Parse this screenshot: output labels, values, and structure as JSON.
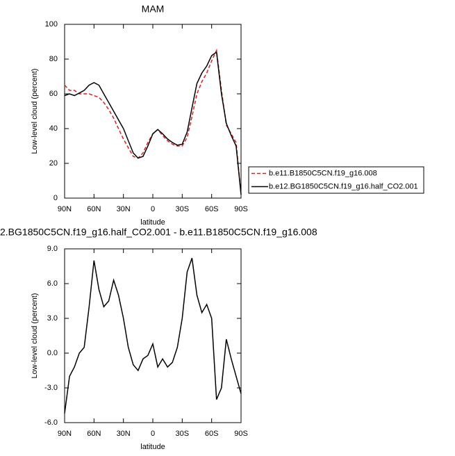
{
  "chart_data": [
    {
      "type": "line",
      "title": "MAM",
      "xlabel": "latitude",
      "ylabel": "Low-level cloud (percent)",
      "x": [
        90,
        85,
        80,
        75,
        70,
        65,
        60,
        55,
        50,
        45,
        40,
        35,
        30,
        25,
        20,
        15,
        10,
        5,
        0,
        -5,
        -10,
        -15,
        -20,
        -25,
        -30,
        -35,
        -40,
        -45,
        -50,
        -55,
        -60,
        -65,
        -70,
        -75,
        -80,
        -85,
        -90
      ],
      "xlim": [
        90,
        -90
      ],
      "xticks": [
        {
          "value": 90,
          "label": "90N"
        },
        {
          "value": 60,
          "label": "60N"
        },
        {
          "value": 30,
          "label": "30N"
        },
        0,
        {
          "value": -30,
          "label": "30S"
        },
        {
          "value": -60,
          "label": "60S"
        },
        {
          "value": -90,
          "label": "90S"
        }
      ],
      "ylim": [
        0,
        100
      ],
      "yticks": [
        0,
        20,
        40,
        60,
        80,
        100
      ],
      "legend": "right",
      "series": [
        {
          "name": "b.e11.B1850C5CN.f19_g16.008",
          "color": "#e41a1c",
          "line_style": "dashed",
          "values": [
            65,
            62,
            62,
            60,
            60,
            60,
            59,
            58,
            55,
            51,
            46,
            40,
            34,
            29,
            24,
            23,
            26,
            32,
            37,
            39.5,
            36,
            33,
            31,
            30,
            30,
            35,
            47,
            60,
            67,
            72,
            79,
            85,
            62,
            42,
            37,
            32,
            2
          ]
        },
        {
          "name": "b.e12.BG1850C5CN.f19_g16.half_CO2.001",
          "color": "#000000",
          "line_style": "solid",
          "values": [
            59,
            60,
            59,
            60.5,
            62,
            65,
            66.5,
            65,
            60,
            55,
            50,
            45,
            40,
            33,
            26,
            23,
            24,
            30,
            37,
            39.5,
            37,
            34,
            32,
            30.5,
            31,
            38,
            52,
            66,
            72,
            76,
            82,
            84,
            60,
            43,
            36,
            30,
            2
          ]
        }
      ]
    },
    {
      "type": "line",
      "title": "2.BG1850C5CN.f19_g16.half_CO2.001 - b.e11.B1850C5CN.f19_g16.008",
      "xlabel": "latitude",
      "ylabel": "Low-level cloud (percent)",
      "x": [
        90,
        85,
        80,
        75,
        70,
        65,
        60,
        55,
        50,
        45,
        40,
        35,
        30,
        25,
        20,
        15,
        10,
        5,
        0,
        -5,
        -10,
        -15,
        -20,
        -25,
        -30,
        -35,
        -40,
        -45,
        -50,
        -55,
        -60,
        -65,
        -70,
        -75,
        -80,
        -85,
        -90
      ],
      "xlim": [
        90,
        -90
      ],
      "xticks": [
        {
          "value": 90,
          "label": "90N"
        },
        {
          "value": 60,
          "label": "60N"
        },
        {
          "value": 30,
          "label": "30N"
        },
        0,
        {
          "value": -30,
          "label": "30S"
        },
        {
          "value": -60,
          "label": "60S"
        },
        {
          "value": -90,
          "label": "90S"
        }
      ],
      "ylim": [
        -6,
        9
      ],
      "yticks": [
        {
          "value": -6,
          "label": "-6.0"
        },
        {
          "value": -3,
          "label": "-3.0"
        },
        {
          "value": 0,
          "label": "0.0"
        },
        {
          "value": 3,
          "label": "3.0"
        },
        {
          "value": 6,
          "label": "6.0"
        },
        {
          "value": 9,
          "label": "9.0"
        }
      ],
      "color": "#000000",
      "line_style": "solid",
      "values": [
        -5.2,
        -2,
        -1.2,
        0,
        0.5,
        4,
        8,
        5.5,
        4,
        4.5,
        6.3,
        5,
        3,
        0.5,
        -1,
        -1.5,
        -0.5,
        -0.2,
        0.8,
        -1.2,
        -0.5,
        -1.2,
        -0.8,
        0.5,
        3,
        7,
        8.2,
        5,
        3.5,
        4.2,
        3,
        -4,
        -3,
        1.2,
        -0.5,
        -2,
        -3.5
      ]
    }
  ]
}
